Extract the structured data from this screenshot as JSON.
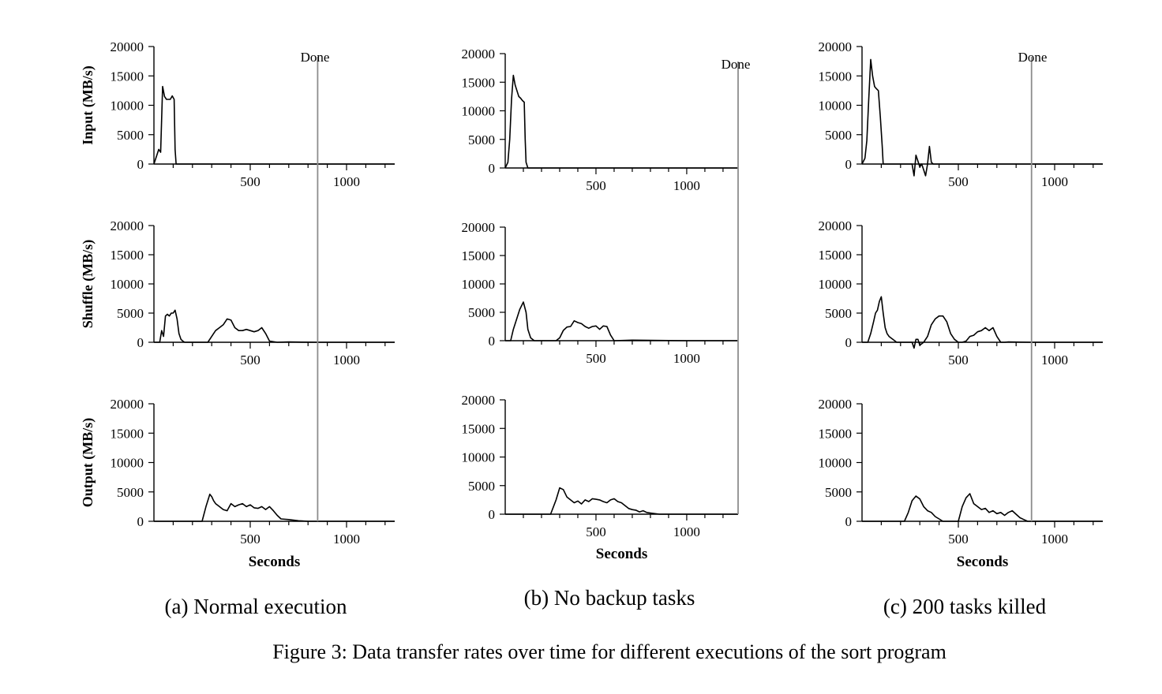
{
  "figure_caption": "Figure 3: Data transfer rates over time for different executions of the sort program",
  "row_labels": [
    "Input (MB/s)",
    "Shuffle (MB/s)",
    "Output (MB/s)"
  ],
  "xlabel": "Seconds",
  "done_label": "Done",
  "colors": {
    "line": "#000000",
    "done_line": "#8c8c8c",
    "background": "#ffffff"
  },
  "chart_data": [
    {
      "type": "line",
      "caption": "(a) Normal execution",
      "done_x": 850,
      "xlim": [
        0,
        1250
      ],
      "xticks": [
        500,
        1000
      ],
      "ylim": [
        0,
        20000
      ],
      "yticks": [
        0,
        5000,
        10000,
        15000,
        20000
      ],
      "series": [
        {
          "name": "Input (MB/s)",
          "x": [
            0,
            15,
            25,
            35,
            45,
            55,
            65,
            75,
            85,
            95,
            105,
            110,
            115,
            125,
            140,
            160,
            200,
            300,
            400,
            600,
            850,
            1000,
            1250
          ],
          "y": [
            0,
            1500,
            2500,
            2000,
            13200,
            11500,
            11000,
            11000,
            11000,
            11600,
            11000,
            2500,
            0,
            0,
            0,
            0,
            0,
            0,
            0,
            0,
            0,
            0,
            0
          ]
        },
        {
          "name": "Shuffle (MB/s)",
          "x": [
            0,
            30,
            40,
            50,
            60,
            70,
            80,
            90,
            100,
            110,
            120,
            130,
            140,
            150,
            160,
            180,
            200,
            250,
            280,
            300,
            320,
            340,
            360,
            380,
            400,
            420,
            440,
            460,
            480,
            500,
            520,
            540,
            560,
            580,
            600,
            640,
            700,
            850,
            1000,
            1250
          ],
          "y": [
            0,
            0,
            2000,
            1000,
            4500,
            4800,
            4500,
            5000,
            5000,
            5500,
            4000,
            1500,
            500,
            200,
            0,
            0,
            0,
            0,
            0,
            1000,
            2000,
            2500,
            3000,
            4000,
            3800,
            2500,
            2000,
            2000,
            2200,
            2000,
            1800,
            2000,
            2500,
            1500,
            200,
            0,
            50,
            0,
            0,
            0
          ]
        },
        {
          "name": "Output (MB/s)",
          "x": [
            0,
            100,
            200,
            250,
            270,
            290,
            300,
            310,
            320,
            340,
            360,
            380,
            400,
            420,
            440,
            460,
            480,
            500,
            520,
            540,
            560,
            580,
            600,
            620,
            640,
            660,
            700,
            750,
            800,
            850,
            1000,
            1250
          ],
          "y": [
            0,
            0,
            0,
            0,
            2500,
            4600,
            4200,
            3500,
            3000,
            2500,
            2000,
            1800,
            3000,
            2500,
            2800,
            3000,
            2500,
            2800,
            2300,
            2200,
            2500,
            2000,
            2500,
            1800,
            1000,
            400,
            300,
            100,
            0,
            0,
            0,
            0
          ]
        }
      ]
    },
    {
      "type": "line",
      "caption": "(b) No backup tasks",
      "done_x": 1283,
      "xlim": [
        0,
        1283
      ],
      "xticks": [
        500,
        1000
      ],
      "ylim": [
        0,
        20000
      ],
      "yticks": [
        0,
        5000,
        10000,
        15000,
        20000
      ],
      "series": [
        {
          "name": "Input (MB/s)",
          "x": [
            0,
            15,
            25,
            35,
            45,
            55,
            65,
            75,
            85,
            95,
            105,
            110,
            115,
            125,
            140,
            160,
            200,
            500,
            1000,
            1283
          ],
          "y": [
            0,
            1000,
            5000,
            12000,
            16200,
            14500,
            13500,
            12500,
            12200,
            11800,
            11500,
            5000,
            1000,
            0,
            0,
            0,
            0,
            0,
            0,
            0
          ]
        },
        {
          "name": "Shuffle (MB/s)",
          "x": [
            0,
            30,
            45,
            60,
            80,
            100,
            115,
            125,
            140,
            160,
            200,
            280,
            300,
            320,
            340,
            360,
            380,
            400,
            420,
            440,
            460,
            480,
            500,
            520,
            540,
            560,
            580,
            600,
            700,
            1000,
            1283
          ],
          "y": [
            0,
            0,
            2000,
            3500,
            5500,
            6800,
            5000,
            2000,
            500,
            0,
            0,
            0,
            500,
            1800,
            2400,
            2500,
            3500,
            3200,
            3000,
            2500,
            2200,
            2500,
            2600,
            2000,
            2600,
            2500,
            1000,
            0,
            100,
            0,
            0
          ]
        },
        {
          "name": "Output (MB/s)",
          "x": [
            0,
            100,
            200,
            250,
            280,
            300,
            320,
            340,
            360,
            380,
            400,
            420,
            440,
            460,
            480,
            500,
            520,
            540,
            560,
            580,
            600,
            620,
            640,
            660,
            680,
            700,
            720,
            740,
            760,
            780,
            800,
            850,
            1000,
            1283
          ],
          "y": [
            0,
            0,
            0,
            0,
            2500,
            4600,
            4300,
            3000,
            2500,
            2000,
            2300,
            1800,
            2500,
            2200,
            2700,
            2600,
            2500,
            2200,
            2000,
            2500,
            2700,
            2200,
            2000,
            1500,
            1000,
            800,
            700,
            400,
            600,
            300,
            200,
            0,
            0,
            0
          ]
        }
      ]
    },
    {
      "type": "line",
      "caption": "(c) 200 tasks killed",
      "done_x": 880,
      "xlim": [
        0,
        1250
      ],
      "xticks": [
        500,
        1000
      ],
      "ylim": [
        0,
        20000
      ],
      "yticks": [
        0,
        5000,
        10000,
        15000,
        20000
      ],
      "series": [
        {
          "name": "Input (MB/s)",
          "x": [
            0,
            15,
            25,
            35,
            45,
            55,
            65,
            75,
            85,
            95,
            105,
            110,
            115,
            125,
            140,
            160,
            200,
            260,
            270,
            280,
            290,
            300,
            310,
            320,
            330,
            340,
            350,
            360,
            370,
            380,
            400,
            500,
            880,
            1000,
            1250
          ],
          "y": [
            0,
            1000,
            4000,
            11000,
            17800,
            15000,
            13200,
            12800,
            12500,
            8000,
            3000,
            0,
            0,
            0,
            0,
            0,
            0,
            0,
            -2000,
            1500,
            500,
            -500,
            0,
            -1000,
            -2000,
            0,
            3000,
            300,
            0,
            0,
            0,
            0,
            0,
            0,
            0
          ]
        },
        {
          "name": "Shuffle (MB/s)",
          "x": [
            0,
            30,
            45,
            60,
            70,
            80,
            90,
            100,
            110,
            120,
            130,
            140,
            160,
            180,
            200,
            260,
            270,
            280,
            290,
            300,
            320,
            340,
            360,
            380,
            400,
            420,
            440,
            460,
            480,
            500,
            520,
            540,
            560,
            580,
            600,
            620,
            640,
            660,
            680,
            700,
            720,
            740,
            760,
            880,
            1000,
            1250
          ],
          "y": [
            0,
            0,
            1500,
            3500,
            5000,
            5500,
            7000,
            7800,
            5000,
            2500,
            1500,
            1000,
            500,
            0,
            0,
            0,
            -1000,
            500,
            500,
            -500,
            0,
            1000,
            3000,
            4000,
            4500,
            4500,
            3500,
            1500,
            500,
            0,
            0,
            200,
            1000,
            1200,
            1800,
            2000,
            2500,
            2000,
            2500,
            1000,
            0,
            0,
            50,
            0,
            0,
            0
          ]
        },
        {
          "name": "Output (MB/s)",
          "x": [
            0,
            100,
            200,
            220,
            240,
            260,
            280,
            300,
            320,
            340,
            360,
            380,
            400,
            420,
            440,
            460,
            480,
            500,
            520,
            540,
            560,
            580,
            600,
            620,
            640,
            660,
            680,
            700,
            720,
            740,
            760,
            780,
            800,
            820,
            840,
            860,
            880,
            1000,
            1250
          ],
          "y": [
            0,
            0,
            0,
            0,
            1500,
            3500,
            4300,
            3800,
            2500,
            1800,
            1500,
            800,
            400,
            0,
            0,
            0,
            0,
            0,
            2500,
            4000,
            4700,
            3000,
            2500,
            2000,
            2200,
            1500,
            1800,
            1300,
            1500,
            1000,
            1500,
            1800,
            1200,
            600,
            300,
            0,
            0,
            0,
            0
          ]
        }
      ]
    }
  ]
}
